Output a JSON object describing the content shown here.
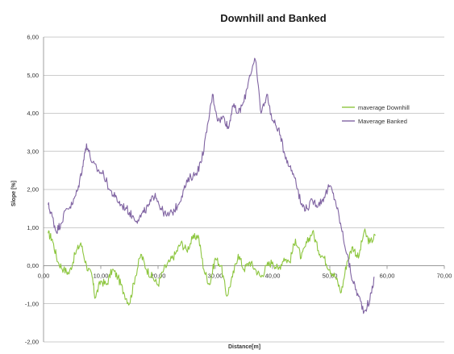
{
  "chart_data": {
    "type": "line",
    "title": "Downhill and Banked",
    "xlabel": "Distance[m]",
    "ylabel": "Slope [%]",
    "xlim": [
      0,
      70
    ],
    "ylim": [
      -2,
      6
    ],
    "x_ticks": [
      "0,00",
      "10,00",
      "20,00",
      "30,00",
      "40,00",
      "50,00",
      "60,00",
      "70,00"
    ],
    "y_ticks": [
      "6,00",
      "5,00",
      "4,00",
      "3,00",
      "2,00",
      "1,00",
      "0,00",
      "-1,00",
      "-2,00"
    ],
    "grid": "horizontal",
    "legend_position": "right",
    "series": [
      {
        "name": "maverage Downhill",
        "color": "#8dc63f",
        "x": [
          0.8,
          1.5,
          2.5,
          3.5,
          4.5,
          5.5,
          6.5,
          7.5,
          8.5,
          9.0,
          10.0,
          11.0,
          12.0,
          13.0,
          14.0,
          15.0,
          16.0,
          17.0,
          18.0,
          19.0,
          20.0,
          21.0,
          22.0,
          23.0,
          24.0,
          25.0,
          26.0,
          27.0,
          28.0,
          29.0,
          30.0,
          31.0,
          32.0,
          33.0,
          34.0,
          35.0,
          36.0,
          37.0,
          38.0,
          39.0,
          40.0,
          41.0,
          42.0,
          43.0,
          44.0,
          45.0,
          46.0,
          47.0,
          48.0,
          49.0,
          50.0,
          51.0,
          52.0,
          53.0,
          54.0,
          55.0,
          56.0,
          57.0,
          58.0
        ],
        "y": [
          0.85,
          0.7,
          0.1,
          -0.1,
          -0.2,
          0.3,
          0.6,
          0.0,
          -0.3,
          -0.85,
          -0.4,
          -0.5,
          -0.1,
          -0.3,
          -0.7,
          -1.0,
          -0.3,
          0.3,
          -0.1,
          -0.3,
          -0.5,
          -0.1,
          0.1,
          0.3,
          0.6,
          0.4,
          0.7,
          0.8,
          -0.1,
          -0.5,
          0.2,
          0.0,
          -0.8,
          -0.3,
          0.3,
          -0.1,
          0.1,
          -0.1,
          -0.3,
          0.0,
          0.1,
          -0.1,
          0.2,
          0.1,
          0.7,
          0.2,
          0.6,
          0.9,
          0.4,
          0.2,
          -0.1,
          -0.3,
          -0.7,
          0.1,
          0.5,
          0.2,
          0.9,
          0.6,
          0.8
        ]
      },
      {
        "name": "Maverage Banked",
        "color": "#8064a2",
        "x": [
          0.8,
          1.5,
          2.2,
          3.0,
          4.0,
          5.0,
          6.0,
          6.8,
          7.5,
          8.5,
          9.5,
          10.5,
          11.5,
          12.5,
          13.5,
          14.5,
          15.5,
          16.5,
          17.5,
          18.5,
          19.5,
          20.5,
          21.5,
          22.5,
          23.5,
          24.5,
          25.5,
          26.5,
          27.5,
          28.5,
          29.5,
          30.5,
          31.5,
          32.3,
          33.0,
          34.0,
          35.0,
          36.0,
          37.0,
          38.0,
          39.0,
          40.0,
          41.0,
          42.0,
          43.0,
          44.0,
          45.0,
          46.0,
          47.0,
          48.0,
          49.0,
          50.0,
          51.0,
          52.0,
          53.0,
          54.0,
          55.0,
          56.0,
          57.0,
          57.8
        ],
        "y": [
          1.6,
          1.3,
          0.9,
          1.1,
          1.5,
          1.6,
          2.0,
          2.6,
          3.2,
          2.7,
          2.5,
          2.4,
          2.0,
          1.8,
          1.6,
          1.5,
          1.3,
          1.2,
          1.4,
          1.6,
          1.9,
          1.5,
          1.3,
          1.4,
          1.6,
          2.0,
          2.3,
          2.4,
          2.7,
          3.5,
          4.5,
          3.8,
          3.9,
          3.6,
          4.2,
          4.0,
          4.3,
          5.0,
          5.4,
          4.0,
          4.5,
          3.8,
          3.6,
          3.0,
          2.6,
          2.3,
          1.6,
          1.5,
          1.7,
          1.6,
          1.8,
          2.1,
          1.7,
          1.0,
          0.3,
          -0.4,
          -0.8,
          -1.2,
          -0.9,
          -0.3
        ]
      }
    ]
  }
}
